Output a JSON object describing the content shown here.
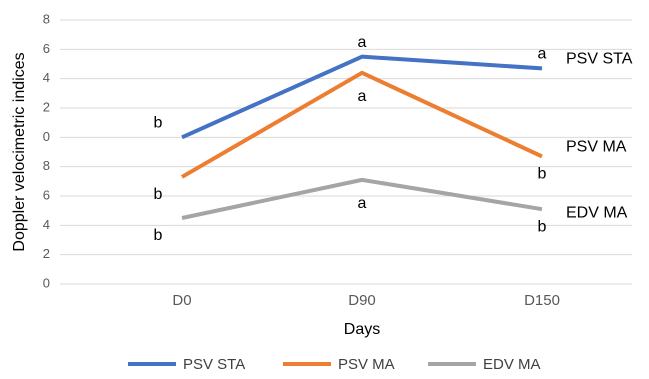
{
  "chart_data": {
    "type": "line",
    "y_label": "Doppler velocimetric indices",
    "x_label": "Days",
    "categories": [
      "D0",
      "D90",
      "D150"
    ],
    "series": [
      {
        "name": "PSV STA",
        "color": "#4472c4",
        "values": [
          10,
          15.5,
          14.7
        ],
        "letters": [
          "b",
          "a",
          "a"
        ]
      },
      {
        "name": "PSV MA",
        "color": "#ed7d31",
        "values": [
          7.3,
          14.4,
          8.7
        ],
        "letters": [
          "b",
          "a",
          "b"
        ]
      },
      {
        "name": "EDV MA",
        "color": "#a5a5a5",
        "values": [
          4.5,
          7.1,
          5.1
        ],
        "letters": [
          "b",
          "a",
          "b"
        ]
      }
    ],
    "ylim": [
      0,
      18
    ],
    "yticks": [
      0,
      2,
      4,
      6,
      8,
      {
        "value": 10,
        "label": "0"
      },
      {
        "value": 12,
        "label": "2"
      },
      {
        "value": 14,
        "label": "4"
      },
      {
        "value": 16,
        "label": "6"
      },
      {
        "value": 18,
        "label": "8"
      }
    ],
    "grid": true,
    "legend": "bottom"
  }
}
